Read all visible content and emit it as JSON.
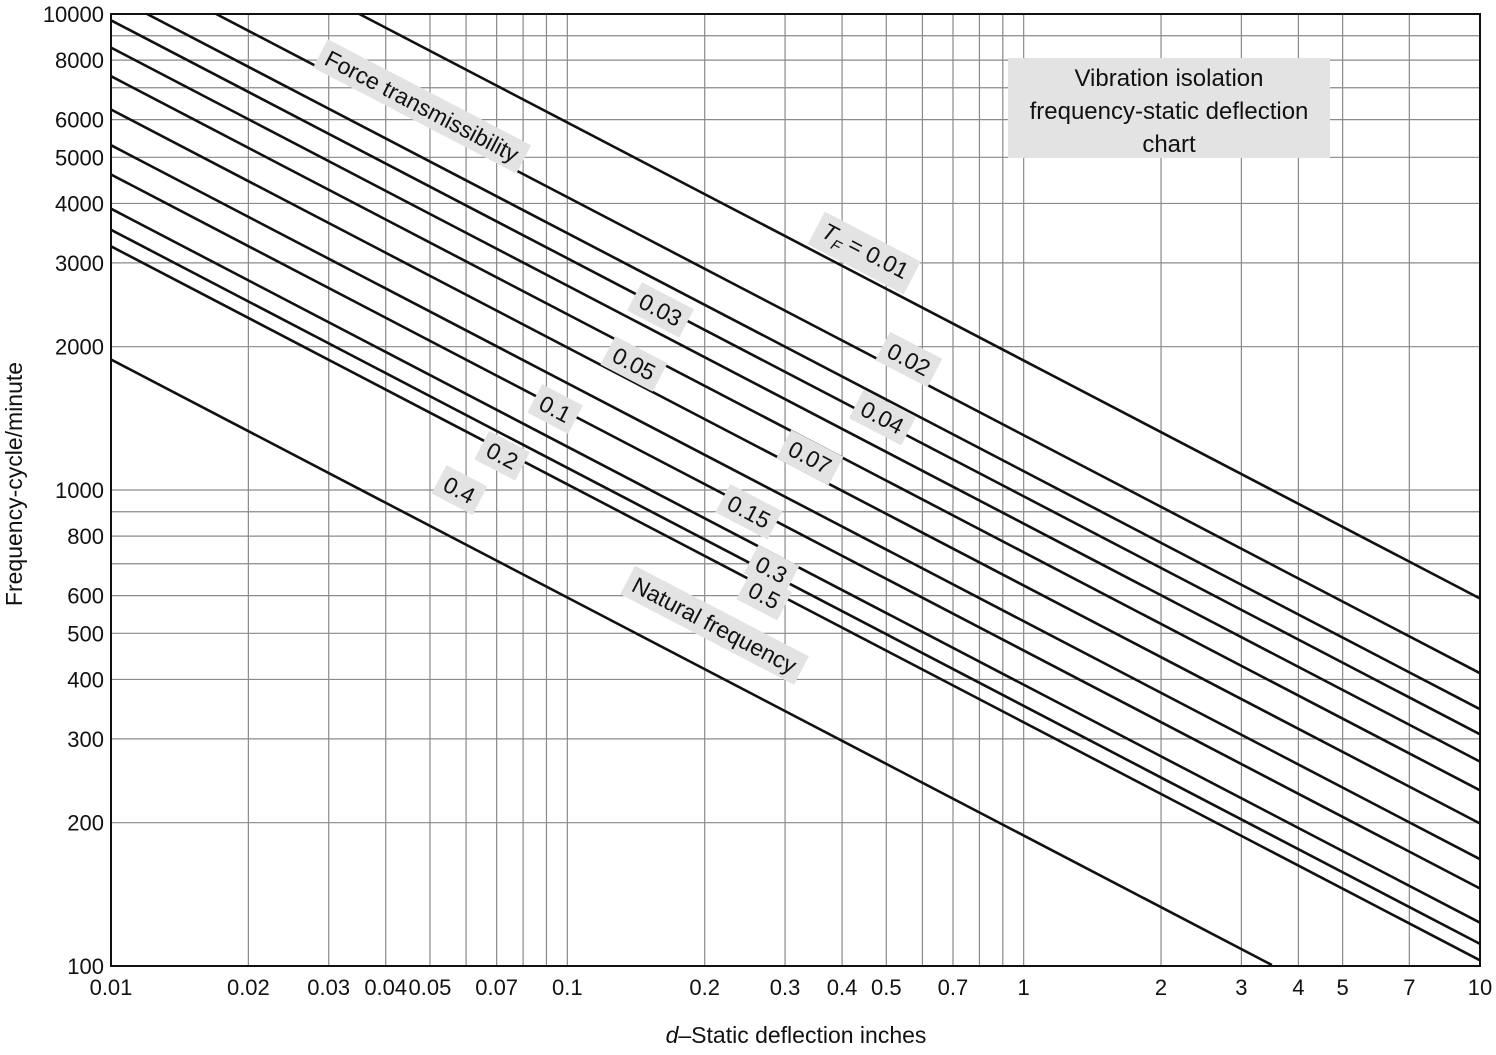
{
  "chart_data": {
    "type": "line",
    "title_lines": [
      "Vibration isolation",
      "frequency-static deflection",
      "chart"
    ],
    "xlabel": {
      "var": "d",
      "rest": "–Static deflection inches"
    },
    "ylabel": "Frequency-cycle/minute",
    "x_scale": "log",
    "y_scale": "log",
    "xlim": [
      0.01,
      10
    ],
    "ylim": [
      100,
      10000
    ],
    "grid": true,
    "x_ticks": [
      "0.01",
      "0.02",
      "0.03",
      "0.04",
      "0.05",
      "0.07",
      "0.1",
      "0.2",
      "0.3",
      "0.4",
      "0.5",
      "0.7",
      "1",
      "2",
      "3",
      "4",
      "5",
      "7",
      "10"
    ],
    "x_minor_gridlines": [
      0.06,
      0.08,
      0.09,
      0.6,
      0.8,
      0.9
    ],
    "y_ticks": [
      "100",
      "200",
      "300",
      "400",
      "500",
      "600",
      "800",
      "1000",
      "2000",
      "3000",
      "4000",
      "5000",
      "6000",
      "8000",
      "10000"
    ],
    "y_minor_gridlines": [
      700,
      900,
      7000,
      9000
    ],
    "group_label": "Force transmissibility",
    "series": [
      {
        "name": "Natural frequency",
        "x": [
          0.01,
          3.5
        ],
        "y": [
          1880,
          100.5
        ]
      },
      {
        "name": "0.5",
        "x": [
          0.01,
          10
        ],
        "y": [
          3250,
          102.8
        ]
      },
      {
        "name": "0.4",
        "x": [
          0.01,
          10
        ],
        "y": [
          3520,
          111.3
        ]
      },
      {
        "name": "0.3",
        "x": [
          0.01,
          10
        ],
        "y": [
          3900,
          123.3
        ]
      },
      {
        "name": "0.2",
        "x": [
          0.01,
          10
        ],
        "y": [
          4600,
          145.5
        ]
      },
      {
        "name": "0.15",
        "x": [
          0.01,
          10
        ],
        "y": [
          5300,
          167.6
        ]
      },
      {
        "name": "0.1",
        "x": [
          0.01,
          10
        ],
        "y": [
          6300,
          199.2
        ]
      },
      {
        "name": "0.07",
        "x": [
          0.01,
          10
        ],
        "y": [
          7400,
          234.0
        ]
      },
      {
        "name": "0.05",
        "x": [
          0.01,
          10
        ],
        "y": [
          8500,
          268.8
        ]
      },
      {
        "name": "0.04",
        "x": [
          0.01,
          10
        ],
        "y": [
          9700,
          306.7
        ]
      },
      {
        "name": "0.03",
        "x": [
          0.012,
          10
        ],
        "y": [
          10000,
          346.4
        ]
      },
      {
        "name": "0.02",
        "x": [
          0.017,
          10
        ],
        "y": [
          10000,
          412.3
        ]
      },
      {
        "name": "0.01",
        "x": [
          0.035,
          10
        ],
        "y": [
          10000,
          591.6
        ]
      }
    ],
    "curve_labels": [
      {
        "text": "Natural frequency",
        "x": 0.21,
        "y": 520
      },
      {
        "text": "0.5",
        "x": 0.27,
        "y": 600
      },
      {
        "text": "0.4",
        "x": 0.058,
        "y": 1000
      },
      {
        "text": "0.3",
        "x": 0.28,
        "y": 680
      },
      {
        "text": "0.2",
        "x": 0.072,
        "y": 1180
      },
      {
        "text": "0.15",
        "x": 0.25,
        "y": 900
      },
      {
        "text": "0.1",
        "x": 0.094,
        "y": 1480
      },
      {
        "text": "0.07",
        "x": 0.34,
        "y": 1170
      },
      {
        "text": "0.05",
        "x": 0.14,
        "y": 1840
      },
      {
        "text": "0.04",
        "x": 0.49,
        "y": 1420
      },
      {
        "text": "0.03",
        "x": 0.16,
        "y": 2390
      },
      {
        "text": "0.02",
        "x": 0.56,
        "y": 1880
      },
      {
        "text": "0.01",
        "x": 0.45,
        "y": 3180,
        "prefix": "T",
        "sub": "F",
        "eq": " = "
      },
      {
        "text": "Force transmissibility",
        "x": 0.048,
        "y": 6400
      }
    ]
  }
}
